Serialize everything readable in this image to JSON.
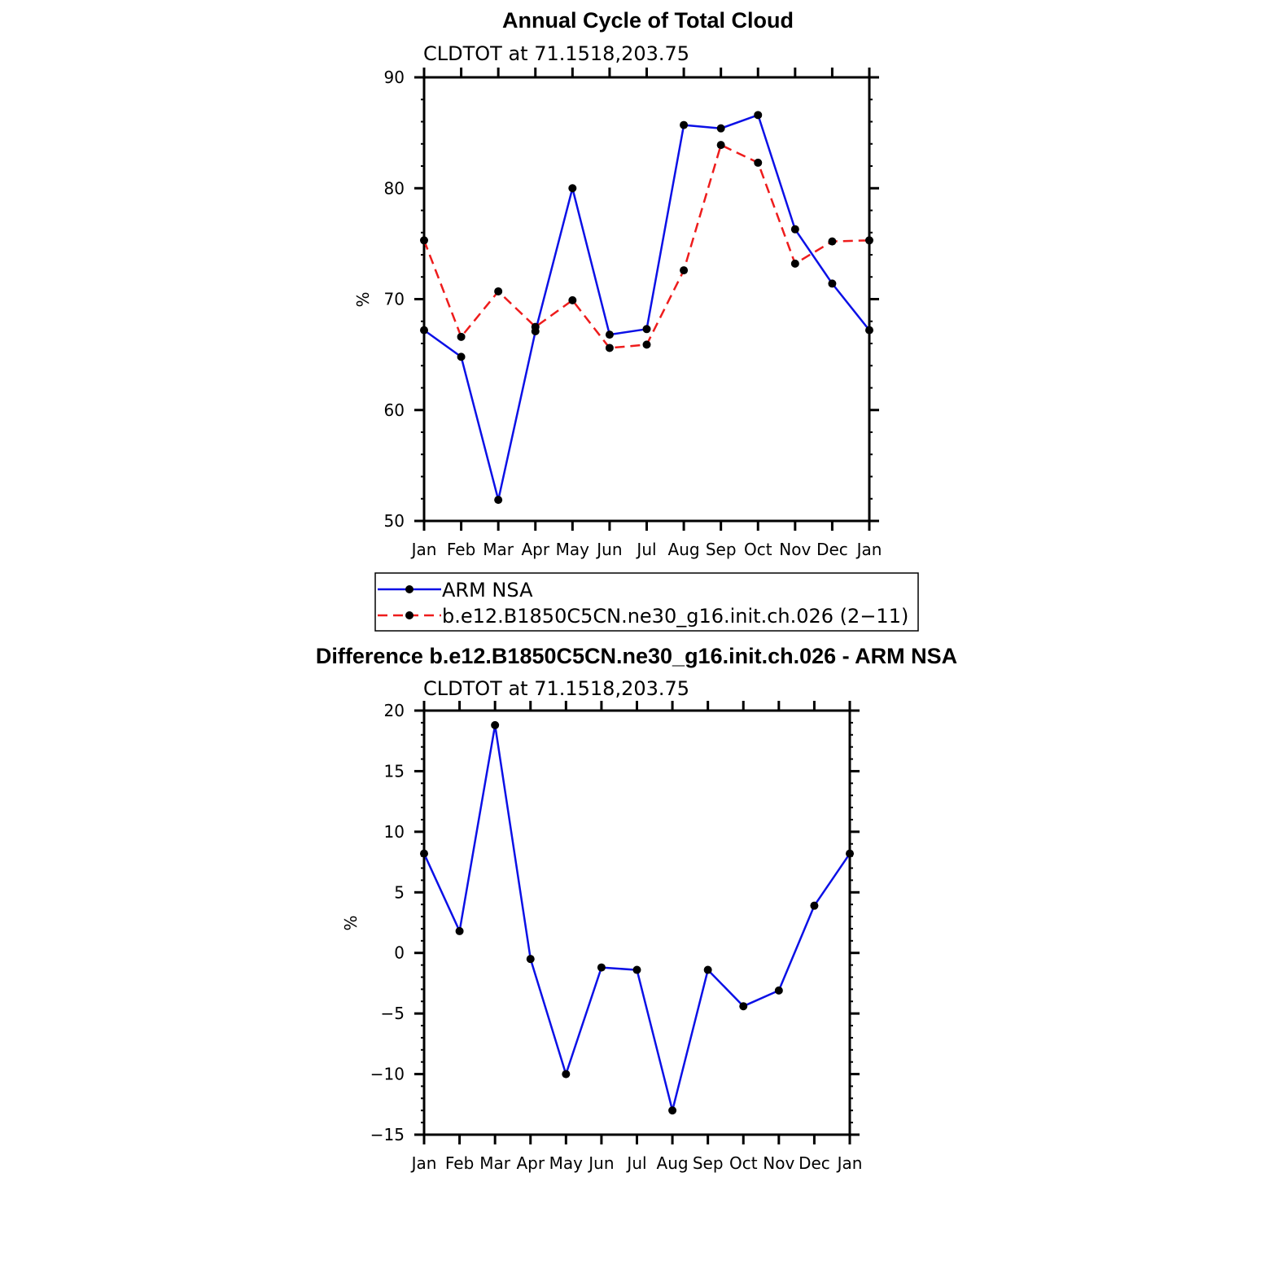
{
  "colors": {
    "blue": "#0b10e6",
    "red": "#ee1c1c",
    "marker": "#000000"
  },
  "chart_data": [
    {
      "type": "line",
      "title": "Annual Cycle of Total Cloud",
      "subtitle": "CLDTOT  at  71.1518,203.75",
      "ylabel": "%",
      "ylim": [
        50,
        90
      ],
      "yticks": [
        50,
        60,
        70,
        80,
        90
      ],
      "categories": [
        "Jan",
        "Feb",
        "Mar",
        "Apr",
        "May",
        "Jun",
        "Jul",
        "Aug",
        "Sep",
        "Oct",
        "Nov",
        "Dec",
        "Jan"
      ],
      "series": [
        {
          "name": "ARM  NSA",
          "color": "blue",
          "dashed": false,
          "values": [
            67.2,
            64.8,
            51.9,
            67.1,
            80.0,
            66.8,
            67.3,
            85.7,
            85.4,
            86.6,
            76.3,
            71.4,
            67.2
          ]
        },
        {
          "name": "b.e12.B1850C5CN.ne30_g16.init.ch.026  (2−11)",
          "color": "red",
          "dashed": true,
          "values": [
            75.3,
            66.6,
            70.7,
            67.5,
            69.9,
            65.6,
            65.9,
            72.6,
            83.9,
            82.3,
            73.2,
            75.2,
            75.3
          ]
        }
      ]
    },
    {
      "type": "line",
      "title": "Difference b.e12.B1850C5CN.ne30_g16.init.ch.026 - ARM NSA",
      "subtitle": "CLDTOT  at  71.1518,203.75",
      "ylabel": "%",
      "ylim": [
        -15,
        20
      ],
      "yticks": [
        -15,
        -10,
        -5,
        0,
        5,
        10,
        15,
        20
      ],
      "ytick_labels": [
        "−15",
        "−10",
        "−5",
        "0",
        "5",
        "10",
        "15",
        "20"
      ],
      "categories": [
        "Jan",
        "Feb",
        "Mar",
        "Apr",
        "May",
        "Jun",
        "Jul",
        "Aug",
        "Sep",
        "Oct",
        "Nov",
        "Dec",
        "Jan"
      ],
      "series": [
        {
          "name": "Difference",
          "color": "blue",
          "dashed": false,
          "values": [
            8.2,
            1.8,
            18.8,
            -0.5,
            -10.0,
            -1.2,
            -1.4,
            -13.0,
            -1.4,
            -4.4,
            -3.1,
            3.9,
            8.2
          ]
        }
      ]
    }
  ]
}
